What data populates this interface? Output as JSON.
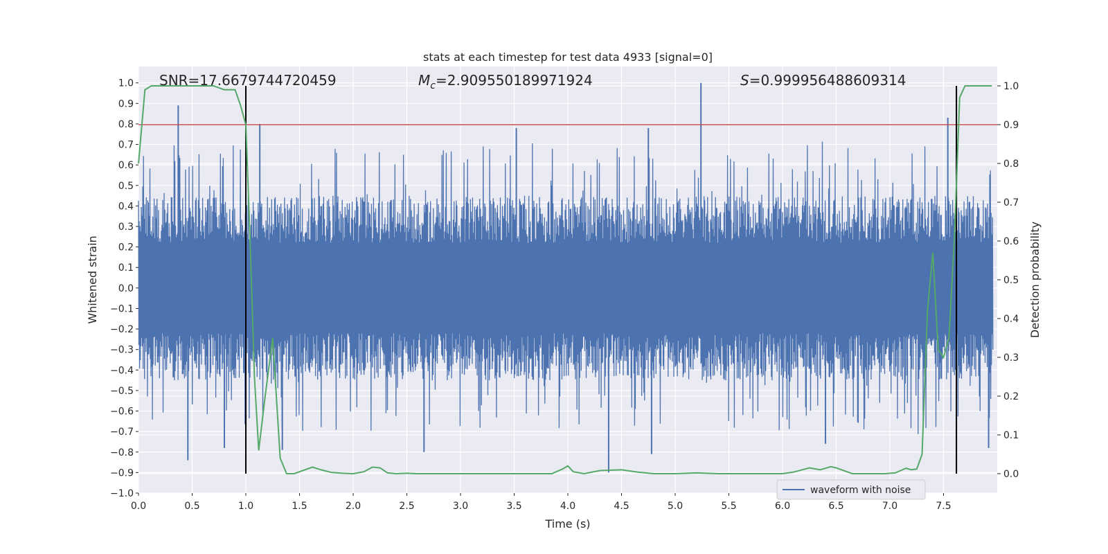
{
  "chart_data": {
    "type": "line",
    "title": "stats at each timestep for test data 4933 [signal=0]",
    "xlabel": "Time (s)",
    "ylabel": "Whitened strain",
    "ylabel_right": "Detection probability",
    "xlim": [
      0.0,
      8.0
    ],
    "ylim": [
      -1.0,
      1.08
    ],
    "ylim_right": [
      -0.05,
      1.05
    ],
    "xticks": [
      "0.0",
      "0.5",
      "1.0",
      "1.5",
      "2.0",
      "2.5",
      "3.0",
      "3.5",
      "4.0",
      "4.5",
      "5.0",
      "5.5",
      "6.0",
      "6.5",
      "7.0",
      "7.5"
    ],
    "xtick_values": [
      0.0,
      0.5,
      1.0,
      1.5,
      2.0,
      2.5,
      3.0,
      3.5,
      4.0,
      4.5,
      5.0,
      5.5,
      6.0,
      6.5,
      7.0,
      7.5
    ],
    "yticks": [
      "1.0",
      "0.9",
      "0.8",
      "0.7",
      "0.6",
      "0.5",
      "0.4",
      "0.3",
      "0.2",
      "0.1",
      "0.0",
      "−0.1",
      "−0.2",
      "−0.3",
      "−0.4",
      "−0.5",
      "−0.6",
      "−0.7",
      "−0.8",
      "−0.9",
      "−1.0"
    ],
    "ytick_values": [
      1.0,
      0.9,
      0.8,
      0.7,
      0.6,
      0.5,
      0.4,
      0.3,
      0.2,
      0.1,
      0.0,
      -0.1,
      -0.2,
      -0.3,
      -0.4,
      -0.5,
      -0.6,
      -0.7,
      -0.8,
      -0.9,
      -1.0
    ],
    "yticks_right": [
      "1.0",
      "0.9",
      "0.8",
      "0.7",
      "0.6",
      "0.5",
      "0.4",
      "0.3",
      "0.2",
      "0.1",
      "0.0"
    ],
    "ytick_right_values": [
      1.0,
      0.9,
      0.8,
      0.7,
      0.6,
      0.5,
      0.4,
      0.3,
      0.2,
      0.1,
      0.0
    ],
    "annotations": {
      "snr": "SNR=17.6679744720459",
      "mc_symbol": "M",
      "mc_sub": "c",
      "mc_value": "=2.909550189971924",
      "s_symbol": "S",
      "s_value": "=0.999956488609314"
    },
    "legend": {
      "label": "waveform with noise",
      "placement": "lower-right"
    },
    "threshold_right": 0.9,
    "vertical_lines_x": [
      1.0,
      7.62
    ],
    "series": [
      {
        "name": "waveform with noise",
        "axis": "left",
        "color": "#4c72b0",
        "note": "dense noise trace sampled across 0–8 s; amplitude envelope ±0.45 with sparse peaks",
        "peaks": [
          {
            "x": 0.37,
            "y": 0.89
          },
          {
            "x": 1.13,
            "y": 0.8
          },
          {
            "x": 3.52,
            "y": 0.78
          },
          {
            "x": 4.75,
            "y": 0.78
          },
          {
            "x": 5.24,
            "y": 1.0
          },
          {
            "x": 7.54,
            "y": 0.83
          },
          {
            "x": 0.46,
            "y": -0.84
          },
          {
            "x": 0.8,
            "y": -0.78
          },
          {
            "x": 1.34,
            "y": -0.79
          },
          {
            "x": 2.66,
            "y": -0.8
          },
          {
            "x": 4.38,
            "y": -0.9
          },
          {
            "x": 4.78,
            "y": -0.81
          },
          {
            "x": 6.4,
            "y": -0.76
          },
          {
            "x": 7.92,
            "y": -0.78
          }
        ]
      },
      {
        "name": "detection probability",
        "axis": "right",
        "color": "#55a868",
        "x": [
          0.0,
          0.06,
          0.12,
          0.2,
          0.3,
          0.4,
          0.5,
          0.6,
          0.7,
          0.8,
          0.9,
          0.95,
          1.0,
          1.04,
          1.08,
          1.12,
          1.18,
          1.25,
          1.32,
          1.38,
          1.45,
          1.55,
          1.62,
          1.7,
          1.8,
          1.9,
          2.0,
          2.1,
          2.18,
          2.25,
          2.32,
          2.4,
          2.5,
          2.6,
          2.8,
          3.0,
          3.2,
          3.4,
          3.6,
          3.7,
          3.85,
          3.95,
          4.0,
          4.05,
          4.15,
          4.3,
          4.5,
          4.65,
          4.8,
          5.0,
          5.2,
          5.4,
          5.6,
          5.8,
          6.0,
          6.1,
          6.25,
          6.35,
          6.45,
          6.5,
          6.55,
          6.65,
          6.8,
          6.95,
          7.05,
          7.1,
          7.15,
          7.2,
          7.25,
          7.3,
          7.35,
          7.4,
          7.45,
          7.5,
          7.55,
          7.6,
          7.65,
          7.7,
          7.75,
          7.8,
          7.9,
          7.95
        ],
        "values": [
          0.8,
          0.99,
          1.0,
          1.0,
          1.0,
          1.0,
          1.0,
          1.0,
          1.0,
          0.99,
          0.99,
          0.95,
          0.9,
          0.6,
          0.25,
          0.06,
          0.2,
          0.35,
          0.04,
          0.0,
          0.0,
          0.01,
          0.017,
          0.01,
          0.003,
          0.001,
          0.0,
          0.005,
          0.017,
          0.015,
          0.002,
          0.0,
          0.001,
          0.0,
          0.0,
          0.0,
          0.0,
          0.0,
          0.0,
          0.0,
          0.0,
          0.012,
          0.02,
          0.005,
          0.0,
          0.008,
          0.01,
          0.004,
          0.0,
          0.0,
          0.002,
          0.0,
          0.0,
          0.0,
          0.0,
          0.004,
          0.015,
          0.01,
          0.018,
          0.015,
          0.01,
          0.0,
          0.0,
          0.0,
          0.002,
          0.008,
          0.014,
          0.01,
          0.012,
          0.05,
          0.42,
          0.57,
          0.32,
          0.3,
          0.35,
          0.6,
          0.97,
          1.0,
          1.0,
          1.0,
          1.0,
          1.0
        ]
      }
    ]
  }
}
